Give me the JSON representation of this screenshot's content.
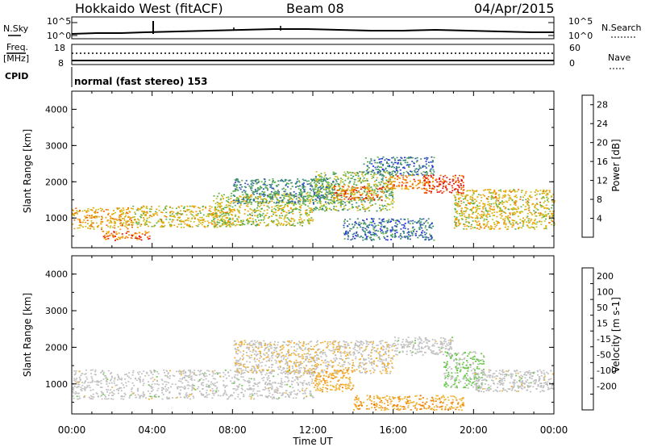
{
  "header": {
    "station": "Hokkaido West (fitACF)",
    "beam": "Beam 08",
    "date": "04/Apr/2015"
  },
  "top_panels": {
    "nsky_label": "N.Sky",
    "nsearch_label": "N.Search",
    "noise_ticks": [
      "10^5",
      "10^0"
    ],
    "freq_label_1": "Freq.",
    "freq_label_2": "[MHz]",
    "freq_ticks": [
      "18",
      "8"
    ],
    "nave_label": "Nave",
    "nave_ticks": [
      "60",
      "0"
    ],
    "cpid_label": "CPID",
    "cpid_value": "normal (fast stereo) 153"
  },
  "chart_data": [
    {
      "type": "heatmap",
      "title": "",
      "xlabel": "Time UT",
      "ylabel": "Slant Range [km]",
      "x_ticks": [
        "00:00",
        "04:00",
        "08:00",
        "12:00",
        "16:00",
        "20:00",
        "00:00"
      ],
      "xlim_hours": [
        0,
        24
      ],
      "ylim_km": [
        180,
        4500
      ],
      "y_ticks": [
        1000,
        2000,
        3000,
        4000
      ],
      "colorbar": {
        "label": "Power [dB]",
        "ticks": [
          4,
          8,
          12,
          16,
          20,
          24,
          28
        ],
        "range": [
          0,
          30
        ],
        "colors": [
          "#1a1aff",
          "#2a4db3",
          "#3b8a7a",
          "#5bb04a",
          "#c8c020",
          "#f0a000",
          "#f06000",
          "#e01010"
        ]
      },
      "scatter_regions": [
        {
          "hours": [
            0,
            3
          ],
          "range_km": [
            700,
            1300
          ],
          "power_db": 20
        },
        {
          "hours": [
            1.5,
            4
          ],
          "range_km": [
            400,
            650
          ],
          "power_db": 24
        },
        {
          "hours": [
            3,
            8
          ],
          "range_km": [
            750,
            1350
          ],
          "power_db": 18
        },
        {
          "hours": [
            7,
            12
          ],
          "range_km": [
            800,
            1700
          ],
          "power_db": 16
        },
        {
          "hours": [
            8,
            13
          ],
          "range_km": [
            1400,
            2100
          ],
          "power_db": 10
        },
        {
          "hours": [
            12,
            16
          ],
          "range_km": [
            1200,
            2300
          ],
          "power_db": 14
        },
        {
          "hours": [
            13,
            15.5
          ],
          "range_km": [
            1500,
            1900
          ],
          "power_db": 24
        },
        {
          "hours": [
            15.5,
            18
          ],
          "range_km": [
            1800,
            2200
          ],
          "power_db": 22
        },
        {
          "hours": [
            14.5,
            18
          ],
          "range_km": [
            2200,
            2700
          ],
          "power_db": 8
        },
        {
          "hours": [
            17.5,
            19.5
          ],
          "range_km": [
            1700,
            2200
          ],
          "power_db": 27
        },
        {
          "hours": [
            19,
            24
          ],
          "range_km": [
            700,
            1800
          ],
          "power_db": 18
        },
        {
          "hours": [
            13.5,
            18
          ],
          "range_km": [
            400,
            1000
          ],
          "power_db": 8
        }
      ]
    },
    {
      "type": "heatmap",
      "title": "",
      "xlabel": "Time UT",
      "ylabel": "Slant Range [km]",
      "x_ticks": [
        "00:00",
        "04:00",
        "08:00",
        "12:00",
        "16:00",
        "20:00",
        "00:00"
      ],
      "xlim_hours": [
        0,
        24
      ],
      "ylim_km": [
        180,
        4500
      ],
      "y_ticks": [
        1000,
        2000,
        3000,
        4000
      ],
      "colorbar": {
        "label": "Velocity [m s-1]",
        "ticks": [
          "200",
          "100",
          "50",
          "15",
          "-15",
          "-50",
          "-100",
          "-200"
        ],
        "range": [
          -250,
          250
        ],
        "colors": [
          "#1a1aff",
          "#3a5cc0",
          "#3c8a60",
          "#60c840",
          "#c0c0c0",
          "#f0b030",
          "#f07800",
          "#f04000",
          "#e01010"
        ]
      },
      "scatter_regions": [
        {
          "hours": [
            0,
            12
          ],
          "range_km": [
            600,
            1400
          ],
          "velocity": 0
        },
        {
          "hours": [
            8,
            16
          ],
          "range_km": [
            1300,
            2200
          ],
          "velocity": -20
        },
        {
          "hours": [
            12,
            14
          ],
          "range_km": [
            800,
            1400
          ],
          "velocity": -60
        },
        {
          "hours": [
            16,
            19
          ],
          "range_km": [
            1800,
            2300
          ],
          "velocity": 0
        },
        {
          "hours": [
            18.5,
            20.5
          ],
          "range_km": [
            900,
            1900
          ],
          "velocity": 30
        },
        {
          "hours": [
            14,
            19.5
          ],
          "range_km": [
            300,
            700
          ],
          "velocity": -70
        },
        {
          "hours": [
            20,
            24
          ],
          "range_km": [
            800,
            1400
          ],
          "velocity": 0
        }
      ]
    }
  ]
}
